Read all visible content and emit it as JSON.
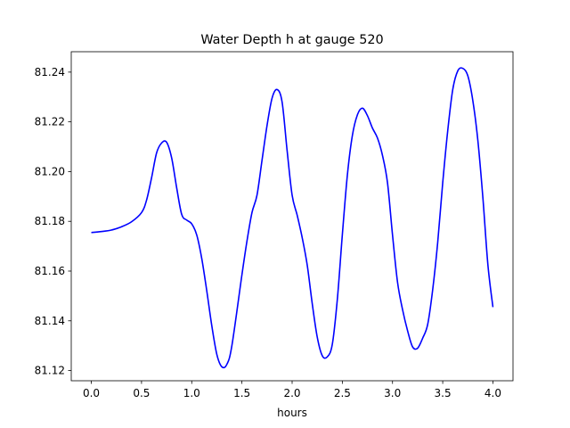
{
  "chart_data": {
    "type": "line",
    "title": "Water Depth h at gauge 520",
    "xlabel": "hours",
    "ylabel": "",
    "xlim": [
      -0.2,
      4.2
    ],
    "ylim": [
      81.1159,
      81.2482
    ],
    "xticks": [
      0.0,
      0.5,
      1.0,
      1.5,
      2.0,
      2.5,
      3.0,
      3.5,
      4.0
    ],
    "xtick_labels": [
      "0.0",
      "0.5",
      "1.0",
      "1.5",
      "2.0",
      "2.5",
      "3.0",
      "3.5",
      "4.0"
    ],
    "yticks": [
      81.12,
      81.14,
      81.16,
      81.18,
      81.2,
      81.22,
      81.24
    ],
    "ytick_labels": [
      "81.12",
      "81.14",
      "81.16",
      "81.18",
      "81.20",
      "81.22",
      "81.24"
    ],
    "grid": false,
    "series": [
      {
        "color": "#0000ff",
        "x": [
          0.0,
          0.1,
          0.2,
          0.3,
          0.4,
          0.5,
          0.55,
          0.6,
          0.65,
          0.7,
          0.75,
          0.8,
          0.85,
          0.9,
          0.95,
          1.0,
          1.05,
          1.1,
          1.15,
          1.2,
          1.25,
          1.3,
          1.35,
          1.4,
          1.5,
          1.55,
          1.6,
          1.65,
          1.7,
          1.75,
          1.8,
          1.85,
          1.9,
          1.95,
          2.0,
          2.05,
          2.1,
          2.15,
          2.2,
          2.25,
          2.3,
          2.35,
          2.4,
          2.45,
          2.5,
          2.55,
          2.6,
          2.65,
          2.7,
          2.75,
          2.8,
          2.85,
          2.9,
          2.95,
          3.0,
          3.05,
          3.1,
          3.15,
          3.2,
          3.25,
          3.3,
          3.35,
          3.4,
          3.45,
          3.5,
          3.55,
          3.6,
          3.65,
          3.7,
          3.75,
          3.8,
          3.85,
          3.9,
          3.95,
          4.0
        ],
        "y": [
          81.1755,
          81.1759,
          81.1765,
          81.1778,
          81.1798,
          81.1835,
          81.1885,
          81.1975,
          81.2075,
          81.2115,
          81.2118,
          81.2055,
          81.1935,
          81.1828,
          81.1805,
          81.179,
          81.1745,
          81.165,
          81.152,
          81.138,
          81.1265,
          81.1215,
          81.1225,
          81.13,
          81.1585,
          81.172,
          81.1835,
          81.1905,
          81.2045,
          81.2185,
          81.2295,
          81.233,
          81.228,
          81.2085,
          81.1905,
          81.1825,
          81.1735,
          81.1625,
          81.147,
          81.1335,
          81.126,
          81.1255,
          81.1305,
          81.1485,
          81.1745,
          81.1985,
          81.2145,
          81.2228,
          81.2255,
          81.2225,
          81.2175,
          81.2135,
          81.2065,
          81.1955,
          81.1745,
          81.1555,
          81.1445,
          81.136,
          81.1295,
          81.129,
          81.133,
          81.1385,
          81.1525,
          81.1715,
          81.1955,
          81.2165,
          81.233,
          81.2405,
          81.2415,
          81.2385,
          81.2285,
          81.2125,
          81.1895,
          81.1625,
          81.1455
        ]
      }
    ]
  }
}
